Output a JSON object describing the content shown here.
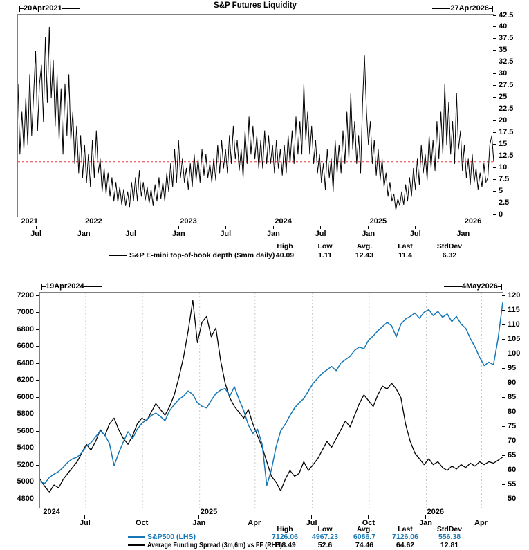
{
  "title": "S&P Futures Liquidity",
  "stats_headers": {
    "high": "High",
    "low": "Low",
    "avg": "Avg.",
    "last": "Last",
    "stddev": "StdDev"
  },
  "colors": {
    "blue": "#1577b6",
    "red": "#ee3333",
    "grid": "#c9c9c9",
    "frame": "#7f7f7f",
    "black": "#000000"
  },
  "chart_data": [
    {
      "type": "line",
      "title": "S&P Futures Liquidity",
      "range_start": "20Apr2021",
      "range_end": "27Apr2026",
      "ylabel": "",
      "ylim": [
        0,
        42.5
      ],
      "y_axis_side": "right",
      "y_ticks": [
        "42.5",
        "40",
        "37.5",
        "35",
        "32.5",
        "30",
        "27.5",
        "25",
        "22.5",
        "20",
        "17.5",
        "15",
        "12.5",
        "10",
        "7.5",
        "5",
        "2.5",
        "0"
      ],
      "x_ticks": [
        {
          "label": "Jul",
          "pos": 0.0394
        },
        {
          "label": "Jan",
          "pos": 0.1397
        },
        {
          "label": "Jul",
          "pos": 0.2386
        },
        {
          "label": "Jan",
          "pos": 0.339
        },
        {
          "label": "Jul",
          "pos": 0.4379
        },
        {
          "label": "Jan",
          "pos": 0.5383
        },
        {
          "label": "Jul",
          "pos": 0.6375
        },
        {
          "label": "Jan",
          "pos": 0.7379
        },
        {
          "label": "Jul",
          "pos": 0.8368
        },
        {
          "label": "Jan",
          "pos": 0.9371
        }
      ],
      "years": [
        {
          "label": "2021",
          "pos": 0.005
        },
        {
          "label": "2022",
          "pos": 0.1397
        },
        {
          "label": "2023",
          "pos": 0.339
        },
        {
          "label": "2024",
          "pos": 0.5383
        },
        {
          "label": "2025",
          "pos": 0.7379
        },
        {
          "label": "2026",
          "pos": 0.9371
        }
      ],
      "ref_line": {
        "value": 11.4,
        "color": "#ee3333",
        "style": "dashed"
      },
      "grid": "off",
      "legend_position": "bottom",
      "series": [
        {
          "name": "S&P E-mini top-of-book depth ($mm daily)",
          "color": "#000000",
          "stats": {
            "high": "40.09",
            "low": "1.11",
            "avg": "12.43",
            "last": "11.4",
            "stddev": "6.32"
          },
          "values": [
            28,
            13,
            22,
            14,
            25,
            15,
            30,
            17,
            26,
            35,
            18,
            28,
            32,
            20,
            38,
            24,
            40.09,
            25,
            33,
            19,
            30,
            16,
            27,
            13,
            28,
            17,
            30,
            16,
            22,
            11,
            19,
            9,
            17,
            8,
            15,
            7,
            13,
            6,
            16,
            8,
            18,
            9,
            12,
            5,
            10,
            4.5,
            9,
            4,
            8,
            3,
            7,
            2.8,
            6,
            2.2,
            5.5,
            2,
            5,
            1.8,
            7,
            3,
            8,
            3,
            9.5,
            4,
            7,
            3.2,
            6,
            2.5,
            5.5,
            2,
            6.5,
            3,
            8,
            3.5,
            7,
            3,
            9,
            5,
            11,
            6,
            14,
            7,
            16,
            8,
            12,
            7,
            10,
            5.5,
            11,
            6,
            13,
            7.5,
            12,
            7,
            14,
            8.5,
            13,
            8,
            11,
            7,
            12,
            7.5,
            15,
            9,
            16,
            10,
            14,
            9,
            17,
            11,
            19,
            12,
            16,
            9.5,
            14,
            8,
            18,
            11,
            21,
            13,
            19,
            12,
            17,
            10,
            16,
            10,
            18,
            11,
            17,
            11,
            15,
            9,
            16,
            10,
            14,
            8.5,
            15,
            9,
            17,
            11,
            18,
            11,
            21,
            13,
            20,
            13,
            28,
            16,
            22,
            13,
            19,
            11,
            16,
            9,
            13,
            7,
            11,
            5.5,
            14,
            8,
            12,
            5,
            16,
            9,
            15,
            9,
            18,
            11,
            22,
            12,
            26,
            14,
            20,
            11,
            17,
            9,
            24,
            34,
            22,
            15,
            20,
            11,
            16,
            8.5,
            14,
            7.5,
            12,
            6,
            9,
            4,
            7,
            3,
            4.5,
            1.11,
            3.5,
            2,
            5,
            2.2,
            6.5,
            3,
            8,
            4,
            10,
            5.5,
            12,
            6.5,
            15,
            9,
            13,
            7.5,
            17,
            10,
            16,
            9.5,
            20,
            12,
            22,
            13,
            28,
            15,
            24,
            13,
            20,
            11,
            26,
            14,
            18,
            9.5,
            15,
            8,
            12,
            6.5,
            13,
            7,
            10,
            5.5,
            9,
            6,
            11,
            7,
            8,
            15,
            17,
            11.4
          ]
        }
      ]
    },
    {
      "type": "line",
      "range_start": "19Apr2024",
      "range_end": "4May2026",
      "lhs_axis": {
        "min": 4800,
        "max": 7200,
        "ticks": [
          "7200",
          "7000",
          "6800",
          "6600",
          "6400",
          "6200",
          "6000",
          "5800",
          "5600",
          "5400",
          "5200",
          "5000",
          "4800"
        ]
      },
      "rhs_axis": {
        "min": 50,
        "max": 120,
        "ticks": [
          "120",
          "115",
          "110",
          "105",
          "100",
          "95",
          "90",
          "85",
          "80",
          "75",
          "70",
          "65",
          "60",
          "55",
          "50"
        ]
      },
      "x_ticks": [
        {
          "label": "Jul",
          "pos": 0.0985
        },
        {
          "label": "Oct",
          "pos": 0.2215
        },
        {
          "label": "Jan",
          "pos": 0.3449
        },
        {
          "label": "Apr",
          "pos": 0.4645
        },
        {
          "label": "Jul",
          "pos": 0.5884
        },
        {
          "label": "Oct",
          "pos": 0.7114
        },
        {
          "label": "Jan",
          "pos": 0.8349
        },
        {
          "label": "Apr",
          "pos": 0.9544
        }
      ],
      "years": [
        {
          "label": "2024",
          "pos": 0.005
        },
        {
          "label": "2025",
          "pos": 0.3449
        },
        {
          "label": "2026",
          "pos": 0.8349
        }
      ],
      "grid": "vertical-dashed",
      "legend_position": "bottom",
      "series": [
        {
          "name": "S&P500 (LHS)",
          "axis": "lhs",
          "color": "#1577b6",
          "stats": {
            "high": "7126.06",
            "low": "4967.23",
            "avg": "6086.7",
            "last": "7126.06",
            "stddev": "556.38"
          },
          "values": [
            5010,
            4990,
            5060,
            5100,
            5130,
            5180,
            5240,
            5280,
            5300,
            5350,
            5430,
            5470,
            5540,
            5610,
            5560,
            5460,
            5200,
            5350,
            5480,
            5600,
            5520,
            5630,
            5700,
            5740,
            5790,
            5820,
            5780,
            5730,
            5850,
            5920,
            5980,
            6020,
            6080,
            6040,
            5940,
            5900,
            5880,
            5970,
            6050,
            6090,
            6110,
            6020,
            6130,
            5980,
            5850,
            5680,
            5580,
            5630,
            5450,
            4967.23,
            5150,
            5420,
            5610,
            5690,
            5790,
            5880,
            5940,
            5990,
            6080,
            6170,
            6230,
            6290,
            6330,
            6370,
            6320,
            6410,
            6450,
            6490,
            6560,
            6600,
            6580,
            6680,
            6730,
            6790,
            6840,
            6890,
            6850,
            6720,
            6870,
            6930,
            6960,
            7000,
            6940,
            7010,
            7040,
            6970,
            7020,
            6950,
            6990,
            6900,
            6960,
            6870,
            6820,
            6700,
            6600,
            6480,
            6380,
            6420,
            6390,
            6700,
            7126.06
          ]
        },
        {
          "name": "Average Funding Spread (3m,6m) vs FF (RHS)",
          "axis": "rhs",
          "color": "#000000",
          "stats": {
            "high": "118.49",
            "low": "52.6",
            "avg": "74.46",
            "last": "64.62",
            "stddev": "12.81"
          },
          "values": [
            57,
            54.5,
            52.6,
            55,
            54,
            57,
            59,
            61,
            63,
            66,
            69,
            67,
            70,
            74,
            72,
            76,
            78,
            74,
            71,
            69,
            72,
            76,
            78,
            77,
            80,
            83,
            81,
            79,
            82,
            86,
            92,
            99,
            108,
            118.49,
            104,
            111,
            113,
            106,
            109,
            98,
            90,
            85,
            82,
            80,
            78,
            81,
            76,
            72,
            68,
            63,
            58,
            56,
            53,
            57,
            60,
            58,
            59,
            63,
            60,
            62,
            64,
            67,
            70,
            68,
            71,
            74,
            77,
            75,
            79,
            83,
            86,
            84,
            82,
            86,
            89,
            88,
            90,
            88,
            85,
            76,
            70,
            66,
            64,
            62,
            64,
            62,
            63,
            61,
            60,
            61.5,
            60.5,
            62,
            61,
            62.5,
            61.5,
            63,
            62,
            63,
            62.5,
            63.5,
            64.62
          ]
        }
      ]
    }
  ]
}
